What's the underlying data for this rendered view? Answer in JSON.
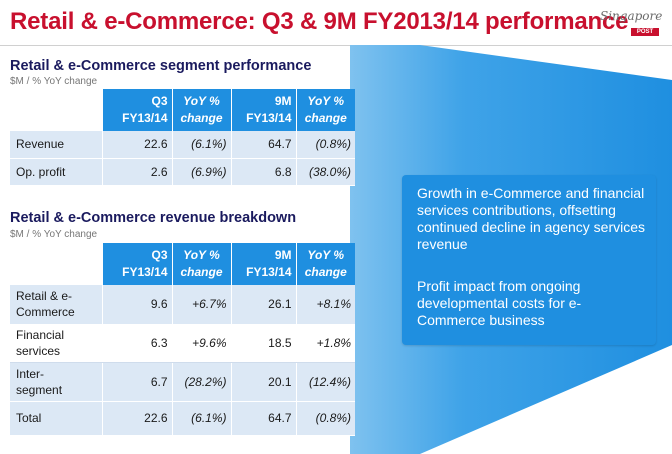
{
  "header": {
    "title": "Retail & e-Commerce: Q3 & 9M FY2013/14 performance",
    "logo_script": "Singapore",
    "logo_post": "POST"
  },
  "segment": {
    "title": "Retail & e-Commerce segment performance",
    "subtitle": "$M / % YoY change",
    "columns": [
      {
        "l1": "Q3",
        "l2": "FY13/14"
      },
      {
        "l1": "YoY %",
        "l2": "change"
      },
      {
        "l1": "9M",
        "l2": "FY13/14"
      },
      {
        "l1": "YoY %",
        "l2": "change"
      }
    ],
    "rows": [
      {
        "label": "Revenue",
        "q3": "22.6",
        "q3_yoy": "(6.1%)",
        "m9": "64.7",
        "m9_yoy": "(0.8%)"
      },
      {
        "label": "Op. profit",
        "q3": "2.6",
        "q3_yoy": "(6.9%)",
        "m9": "6.8",
        "m9_yoy": "(38.0%)"
      }
    ]
  },
  "breakdown": {
    "title": "Retail & e-Commerce revenue breakdown",
    "subtitle": "$M / % YoY change",
    "columns": [
      {
        "l1": "Q3",
        "l2": "FY13/14"
      },
      {
        "l1": "YoY %",
        "l2": "change"
      },
      {
        "l1": "9M",
        "l2": "FY13/14"
      },
      {
        "l1": "YoY %",
        "l2": "change"
      }
    ],
    "rows": [
      {
        "label1": "Retail & e-",
        "label2": "Commerce",
        "q3": "9.6",
        "q3_yoy": "+6.7%",
        "m9": "26.1",
        "m9_yoy": "+8.1%"
      },
      {
        "label1": "Financial",
        "label2": "services",
        "q3": "6.3",
        "q3_yoy": "+9.6%",
        "m9": "18.5",
        "m9_yoy": "+1.8%"
      },
      {
        "label1": "Inter-",
        "label2": "segment",
        "q3": "6.7",
        "q3_yoy": "(28.2%)",
        "m9": "20.1",
        "m9_yoy": "(12.4%)"
      },
      {
        "label1": "Total",
        "label2": "",
        "q3": "22.6",
        "q3_yoy": "(6.1%)",
        "m9": "64.7",
        "m9_yoy": "(0.8%)"
      }
    ]
  },
  "callout": {
    "paragraph1": "Growth in e-Commerce and financial services contributions, offsetting continued decline in agency services revenue",
    "paragraph2": "Profit impact from ongoing developmental costs for  e-Commerce business"
  },
  "colors": {
    "title_red": "#c8102e",
    "header_blue": "#1f8fe0",
    "row_shade": "#dce8f5",
    "section_navy": "#1a1a5e"
  }
}
